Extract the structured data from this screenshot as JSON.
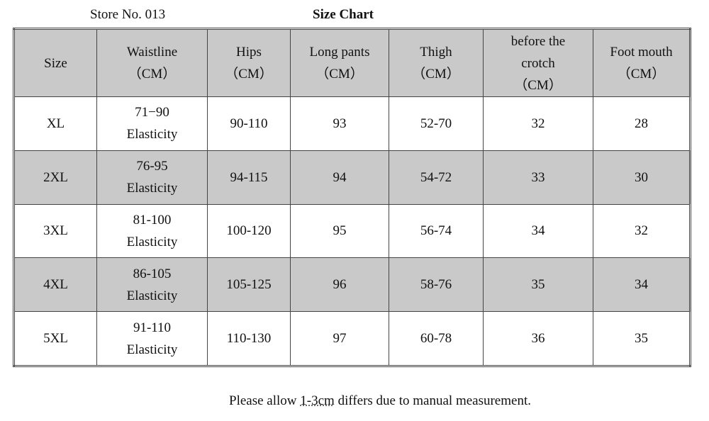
{
  "header": {
    "store": "Store No. 013",
    "title": "Size Chart"
  },
  "table": {
    "columns": [
      [
        "Size"
      ],
      [
        "Waistline",
        "（CM）"
      ],
      [
        "Hips",
        "（CM）"
      ],
      [
        "Long pants",
        "（CM）"
      ],
      [
        "Thigh",
        "（CM）"
      ],
      [
        "before the",
        "crotch",
        "（CM）"
      ],
      [
        "Foot mouth",
        "（CM）"
      ]
    ],
    "rows": [
      [
        "XL",
        [
          "71−90",
          "Elasticity"
        ],
        "90-110",
        93,
        "52-70",
        32,
        28
      ],
      [
        "2XL",
        [
          "76-95",
          "Elasticity"
        ],
        "94-115",
        94,
        "54-72",
        33,
        30
      ],
      [
        "3XL",
        [
          "81-100",
          "Elasticity"
        ],
        "100-120",
        95,
        "56-74",
        34,
        32
      ],
      [
        "4XL",
        [
          "86-105",
          "Elasticity"
        ],
        "105-125",
        96,
        "58-76",
        35,
        34
      ],
      [
        "5XL",
        [
          "91-110",
          "Elasticity"
        ],
        "110-130",
        97,
        "60-78",
        36,
        35
      ]
    ]
  },
  "note": {
    "before": "Please allow ",
    "highlight": "1-3cm",
    "after": " differs due to manual measurement."
  }
}
